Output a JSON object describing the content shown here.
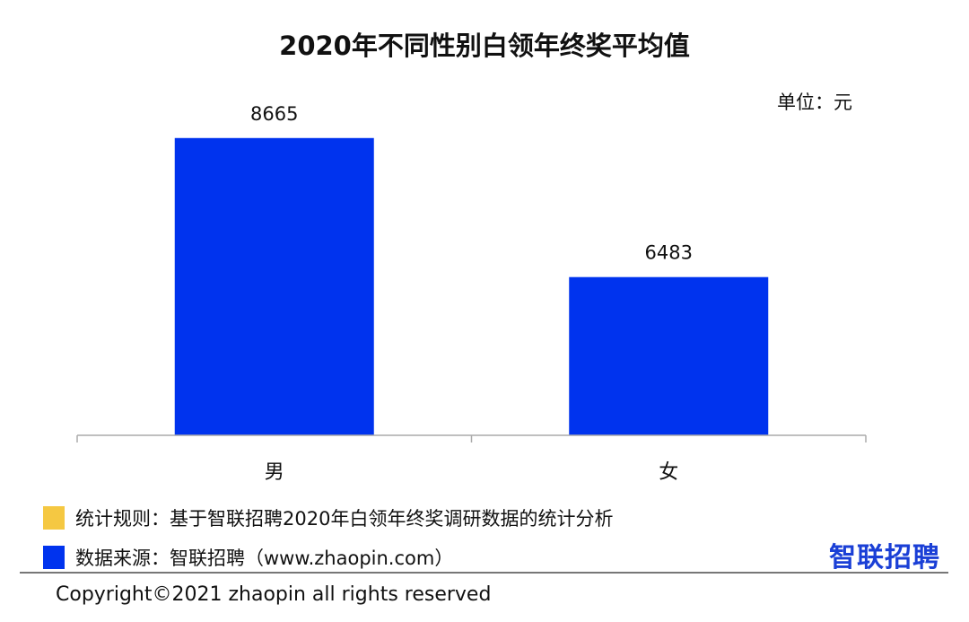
{
  "chart_data": {
    "type": "bar",
    "title": "2020年不同性别白领年终奖平均值",
    "unit_label": "单位：元",
    "categories": [
      "男",
      "女"
    ],
    "values": [
      8665,
      6483
    ],
    "data_labels": [
      "8665",
      "6483"
    ],
    "ylim": [
      4000,
      9000
    ],
    "grid": false,
    "y_axis_visible": false,
    "bar_color": "#0033ee"
  },
  "footer": {
    "legend": [
      {
        "color": "#f5c842",
        "text": "统计规则：基于智联招聘2020年白领年终奖调研数据的统计分析"
      },
      {
        "color": "#0033ee",
        "text": "数据来源：智联招聘（www.zhaopin.com）"
      }
    ],
    "logo": "智联招聘",
    "copyright": "Copyright©2021 zhaopin all rights reserved"
  }
}
